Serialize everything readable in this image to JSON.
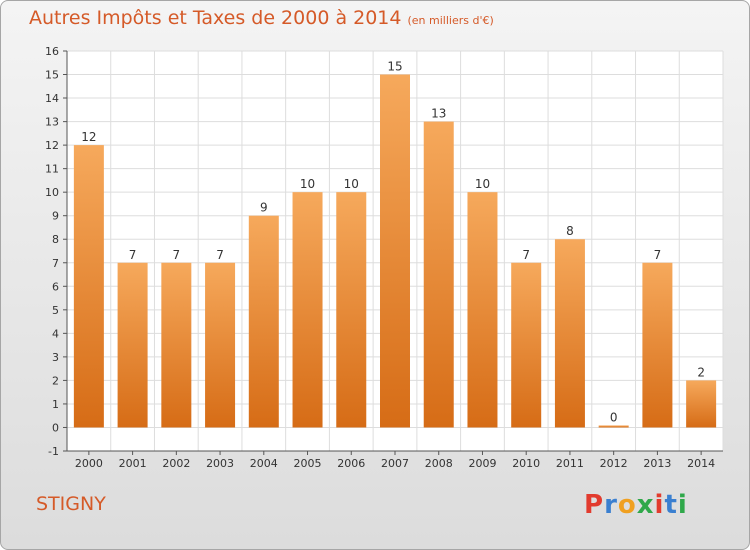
{
  "chart_data": {
    "type": "bar",
    "title": "Autres Impôts et Taxes de 2000 à 2014",
    "title_unit": "(en milliers d'€)",
    "categories": [
      "2000",
      "2001",
      "2002",
      "2003",
      "2004",
      "2005",
      "2006",
      "2007",
      "2008",
      "2009",
      "2010",
      "2011",
      "2012",
      "2013",
      "2014"
    ],
    "values": [
      12,
      7,
      7,
      7,
      9,
      10,
      10,
      15,
      13,
      10,
      7,
      8,
      0,
      7,
      2
    ],
    "ylim": [
      -1,
      16
    ],
    "yticks": [
      -1,
      0,
      1,
      2,
      3,
      4,
      5,
      6,
      7,
      8,
      9,
      10,
      11,
      12,
      13,
      14,
      15,
      16
    ],
    "grid": true,
    "colors": {
      "bar_top": "#f6a95c",
      "bar_bottom": "#d66c16",
      "title": "#d55a28"
    }
  },
  "footer": {
    "city": "STIGNY"
  },
  "logo": {
    "letters": [
      "P",
      "r",
      "o",
      "x",
      "i",
      "t",
      "i"
    ],
    "colors": [
      "#e23b2e",
      "#3a7fd0",
      "#f0a020",
      "#2fa84a",
      "#e23b2e",
      "#3a7fd0",
      "#2fa84a"
    ]
  }
}
